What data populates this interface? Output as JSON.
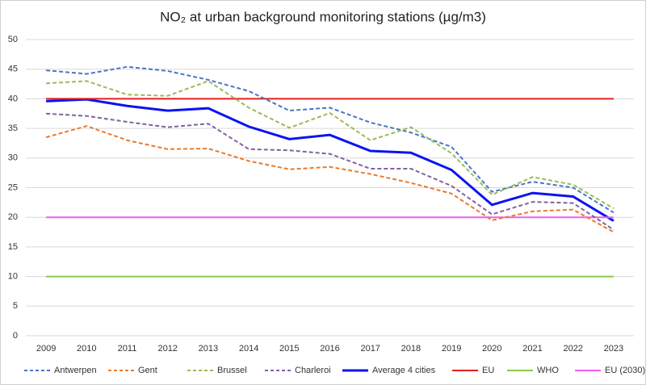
{
  "chart_data": {
    "type": "line",
    "title": "NO₂ at urban background monitoring stations (µg/m3)",
    "categories": [
      "2009",
      "2010",
      "2011",
      "2012",
      "2013",
      "2014",
      "2015",
      "2016",
      "2017",
      "2018",
      "2019",
      "2020",
      "2021",
      "2022",
      "2023"
    ],
    "ylim": [
      0,
      50
    ],
    "yticks": [
      0,
      5,
      10,
      15,
      20,
      25,
      30,
      35,
      40,
      45,
      50
    ],
    "grid": true,
    "series": [
      {
        "name": "Antwerpen",
        "color": "#4a76c4",
        "dashed": true,
        "values": [
          44.8,
          44.2,
          45.4,
          44.7,
          43.2,
          41.3,
          38,
          38.5,
          36,
          34.3,
          31.9,
          24.3,
          26,
          25,
          20.8
        ]
      },
      {
        "name": "Gent",
        "color": "#e97a2c",
        "dashed": true,
        "values": [
          33.5,
          35.4,
          33,
          31.5,
          31.6,
          29.5,
          28.1,
          28.5,
          27.3,
          25.8,
          24,
          19.5,
          21,
          21.3,
          17.5
        ]
      },
      {
        "name": "Brussel",
        "color": "#9bbb59",
        "dashed": true,
        "values": [
          42.6,
          43,
          40.7,
          40.5,
          43,
          38.5,
          35.1,
          37.6,
          33,
          35.2,
          30.8,
          23.8,
          26.8,
          25.5,
          21.5
        ]
      },
      {
        "name": "Charleroi",
        "color": "#7f62a1",
        "dashed": true,
        "values": [
          37.5,
          37.1,
          36.1,
          35.2,
          35.8,
          31.5,
          31.3,
          30.7,
          28.2,
          28.2,
          25.3,
          20.5,
          22.6,
          22.4,
          17.9
        ]
      },
      {
        "name": "Average 4 cities",
        "color": "#0a14f0",
        "dashed": false,
        "width": 3,
        "values": [
          39.6,
          39.9,
          38.8,
          38,
          38.4,
          35.3,
          33.2,
          33.9,
          31.2,
          30.9,
          28,
          22.1,
          24.1,
          23.5,
          19.4
        ]
      },
      {
        "name": "EU",
        "color": "#e0201f",
        "dashed": false,
        "values": [
          40,
          40,
          40,
          40,
          40,
          40,
          40,
          40,
          40,
          40,
          40,
          40,
          40,
          40,
          40
        ]
      },
      {
        "name": "WHO",
        "color": "#8cc84b",
        "dashed": false,
        "values": [
          10,
          10,
          10,
          10,
          10,
          10,
          10,
          10,
          10,
          10,
          10,
          10,
          10,
          10,
          10
        ]
      },
      {
        "name": "EU (2030)",
        "color": "#f25cf2",
        "dashed": false,
        "values": [
          20,
          20,
          20,
          20,
          20,
          20,
          20,
          20,
          20,
          20,
          20,
          20,
          20,
          20,
          20
        ]
      }
    ]
  }
}
